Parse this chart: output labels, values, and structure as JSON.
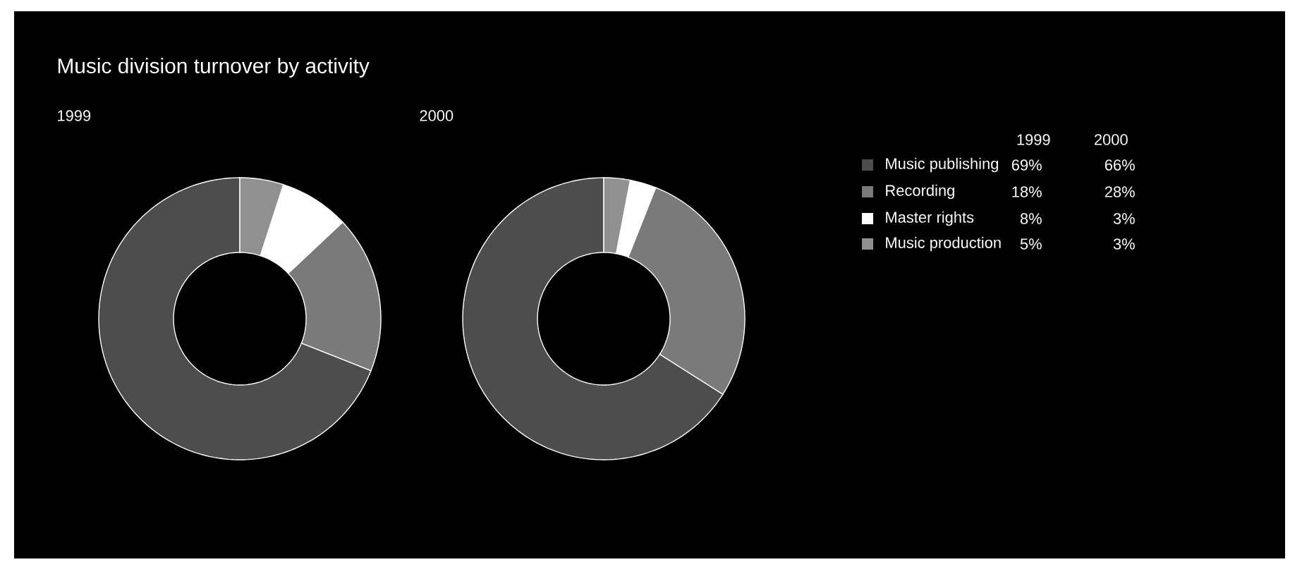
{
  "chart_data": {
    "type": "donut",
    "title": "Music division turnover by activity",
    "categories": [
      "Music publishing",
      "Recording",
      "Master rights",
      "Music production"
    ],
    "colors": [
      "#4d4d4d",
      "#7a7a7a",
      "#ffffff",
      "#909090"
    ],
    "legend": "right",
    "series": [
      {
        "name": "1999",
        "values": [
          69,
          18,
          8,
          5
        ],
        "value_labels": [
          "69%",
          "18%",
          "8%",
          "5%"
        ]
      },
      {
        "name": "2000",
        "values": [
          66,
          28,
          3,
          3
        ],
        "value_labels": [
          "66%",
          "28%",
          "3%",
          "3%"
        ]
      }
    ]
  }
}
